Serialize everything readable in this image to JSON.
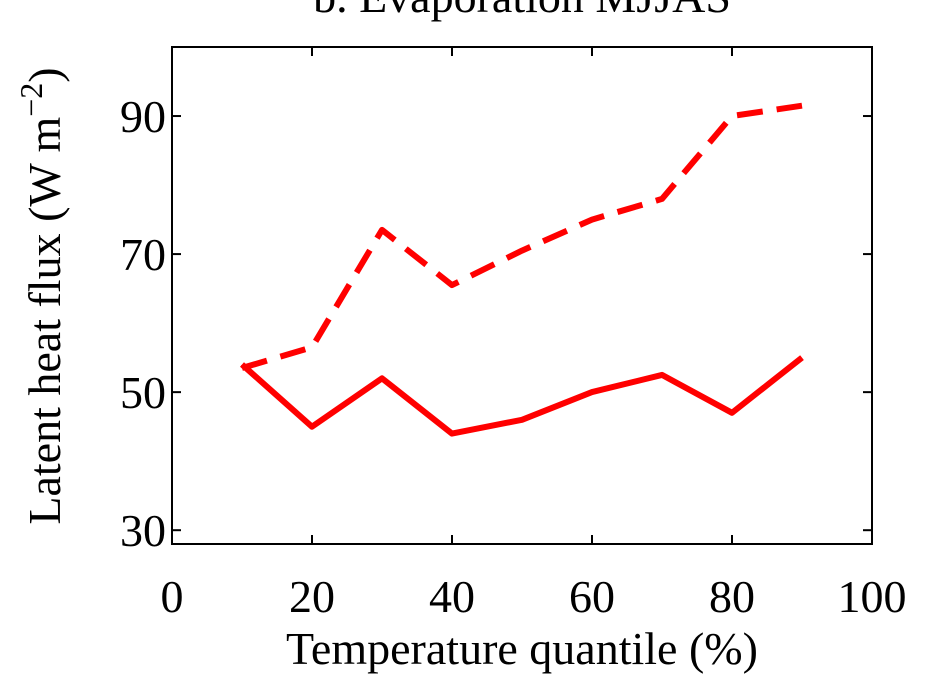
{
  "chart_data": {
    "type": "line",
    "title": "b. Evaporation MJJAS",
    "xlabel": "Temperature quantile (%)",
    "ylabel": "Latent heat flux (W m",
    "ylabel_unit_exponent": "−2",
    "ylabel_close": ")",
    "xlim": [
      0,
      100
    ],
    "ylim": [
      28,
      100
    ],
    "xticks": [
      0,
      20,
      40,
      60,
      80,
      100
    ],
    "yticks": [
      30,
      50,
      70,
      90
    ],
    "grid": false,
    "series": [
      {
        "style": "dashed",
        "color": "#ff0000",
        "x": [
          10,
          20,
          30,
          40,
          50,
          60,
          70,
          80,
          90
        ],
        "values": [
          53.5,
          56.5,
          73.5,
          65.5,
          70.5,
          75,
          78,
          90,
          91.5
        ]
      },
      {
        "style": "solid",
        "color": "#ff0000",
        "x": [
          10,
          20,
          30,
          40,
          50,
          60,
          70,
          80,
          90
        ],
        "values": [
          54,
          45,
          52,
          44,
          46,
          50,
          52.5,
          47,
          55
        ]
      }
    ]
  }
}
